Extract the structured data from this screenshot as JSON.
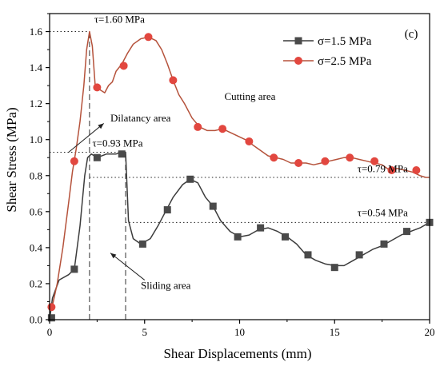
{
  "chart_data": {
    "type": "line",
    "panel_label": "(c)",
    "xlabel": "Shear Displacements (mm)",
    "ylabel": "Shear Stress (MPa)",
    "xlim": [
      0,
      20
    ],
    "ylim": [
      0,
      1.7
    ],
    "x_ticks": [
      "0",
      "5",
      "10",
      "15",
      "20"
    ],
    "y_ticks": [
      "0.0",
      "0.2",
      "0.4",
      "0.6",
      "0.8",
      "1.0",
      "1.2",
      "1.4",
      "1.6"
    ],
    "legend_position": "top-right",
    "series": [
      {
        "name": "σ=1.5 MPa",
        "color": "#3c3c3c",
        "marker": "square",
        "curve": [
          [
            0,
            0
          ],
          [
            0.15,
            0.12
          ],
          [
            0.5,
            0.22
          ],
          [
            1.0,
            0.25
          ],
          [
            1.3,
            0.28
          ],
          [
            1.6,
            0.52
          ],
          [
            1.85,
            0.8
          ],
          [
            2.0,
            0.9
          ],
          [
            2.2,
            0.92
          ],
          [
            2.5,
            0.9
          ],
          [
            3.0,
            0.92
          ],
          [
            3.5,
            0.92
          ],
          [
            3.8,
            0.93
          ],
          [
            4.0,
            0.93
          ],
          [
            4.15,
            0.55
          ],
          [
            4.4,
            0.45
          ],
          [
            4.8,
            0.42
          ],
          [
            5.3,
            0.45
          ],
          [
            5.7,
            0.52
          ],
          [
            6.1,
            0.6
          ],
          [
            6.5,
            0.68
          ],
          [
            7.0,
            0.75
          ],
          [
            7.4,
            0.78
          ],
          [
            7.8,
            0.76
          ],
          [
            8.2,
            0.68
          ],
          [
            8.6,
            0.63
          ],
          [
            9.0,
            0.55
          ],
          [
            9.5,
            0.49
          ],
          [
            10.0,
            0.46
          ],
          [
            10.5,
            0.47
          ],
          [
            11.0,
            0.5
          ],
          [
            11.5,
            0.51
          ],
          [
            12.0,
            0.49
          ],
          [
            12.5,
            0.46
          ],
          [
            13.0,
            0.42
          ],
          [
            13.5,
            0.36
          ],
          [
            14.0,
            0.33
          ],
          [
            14.5,
            0.31
          ],
          [
            15.0,
            0.3
          ],
          [
            15.5,
            0.3
          ],
          [
            16.0,
            0.33
          ],
          [
            16.5,
            0.36
          ],
          [
            17.0,
            0.39
          ],
          [
            17.5,
            0.41
          ],
          [
            18.0,
            0.44
          ],
          [
            18.5,
            0.47
          ],
          [
            19.0,
            0.49
          ],
          [
            19.5,
            0.51
          ],
          [
            20.0,
            0.54
          ]
        ],
        "marker_points": [
          [
            0.1,
            0.01
          ],
          [
            1.3,
            0.28
          ],
          [
            2.5,
            0.9
          ],
          [
            3.8,
            0.92
          ],
          [
            4.9,
            0.42
          ],
          [
            6.2,
            0.61
          ],
          [
            7.4,
            0.78
          ],
          [
            8.6,
            0.63
          ],
          [
            9.9,
            0.46
          ],
          [
            11.1,
            0.51
          ],
          [
            12.4,
            0.46
          ],
          [
            13.6,
            0.36
          ],
          [
            15.0,
            0.29
          ],
          [
            16.3,
            0.36
          ],
          [
            17.6,
            0.42
          ],
          [
            18.8,
            0.49
          ],
          [
            20.0,
            0.54
          ]
        ]
      },
      {
        "name": "σ=2.5 MPa",
        "color": "#b5523b",
        "marker": "circle",
        "marker_color": "#e2473f",
        "curve": [
          [
            0,
            0.05
          ],
          [
            0.15,
            0.08
          ],
          [
            0.4,
            0.2
          ],
          [
            0.7,
            0.4
          ],
          [
            1.0,
            0.65
          ],
          [
            1.2,
            0.82
          ],
          [
            1.4,
            0.95
          ],
          [
            1.6,
            1.1
          ],
          [
            1.8,
            1.3
          ],
          [
            1.95,
            1.5
          ],
          [
            2.1,
            1.6
          ],
          [
            2.25,
            1.52
          ],
          [
            2.4,
            1.3
          ],
          [
            2.6,
            1.28
          ],
          [
            2.9,
            1.26
          ],
          [
            3.1,
            1.3
          ],
          [
            3.3,
            1.32
          ],
          [
            3.5,
            1.38
          ],
          [
            3.8,
            1.42
          ],
          [
            4.1,
            1.48
          ],
          [
            4.4,
            1.53
          ],
          [
            4.8,
            1.56
          ],
          [
            5.2,
            1.57
          ],
          [
            5.6,
            1.55
          ],
          [
            5.9,
            1.5
          ],
          [
            6.2,
            1.42
          ],
          [
            6.5,
            1.33
          ],
          [
            6.8,
            1.25
          ],
          [
            7.1,
            1.2
          ],
          [
            7.5,
            1.12
          ],
          [
            7.9,
            1.07
          ],
          [
            8.3,
            1.05
          ],
          [
            8.7,
            1.05
          ],
          [
            9.1,
            1.06
          ],
          [
            9.5,
            1.04
          ],
          [
            9.9,
            1.02
          ],
          [
            10.3,
            1.0
          ],
          [
            10.7,
            0.97
          ],
          [
            11.1,
            0.94
          ],
          [
            11.5,
            0.91
          ],
          [
            11.9,
            0.9
          ],
          [
            12.3,
            0.89
          ],
          [
            12.7,
            0.87
          ],
          [
            13.1,
            0.87
          ],
          [
            13.5,
            0.87
          ],
          [
            13.9,
            0.86
          ],
          [
            14.3,
            0.87
          ],
          [
            14.7,
            0.88
          ],
          [
            15.1,
            0.89
          ],
          [
            15.5,
            0.9
          ],
          [
            15.9,
            0.9
          ],
          [
            16.3,
            0.89
          ],
          [
            16.7,
            0.88
          ],
          [
            17.1,
            0.87
          ],
          [
            17.5,
            0.86
          ],
          [
            17.9,
            0.83
          ],
          [
            18.3,
            0.84
          ],
          [
            18.7,
            0.83
          ],
          [
            19.1,
            0.82
          ],
          [
            19.5,
            0.8
          ],
          [
            19.8,
            0.79
          ],
          [
            20.0,
            0.79
          ]
        ],
        "marker_points": [
          [
            0.1,
            0.07
          ],
          [
            1.3,
            0.88
          ],
          [
            2.5,
            1.29
          ],
          [
            3.9,
            1.41
          ],
          [
            5.2,
            1.57
          ],
          [
            6.5,
            1.33
          ],
          [
            7.8,
            1.07
          ],
          [
            9.1,
            1.06
          ],
          [
            10.5,
            0.99
          ],
          [
            11.8,
            0.9
          ],
          [
            13.1,
            0.87
          ],
          [
            14.5,
            0.88
          ],
          [
            15.8,
            0.9
          ],
          [
            17.1,
            0.88
          ],
          [
            18.0,
            0.83
          ],
          [
            19.3,
            0.83
          ]
        ]
      }
    ],
    "h_refs": [
      {
        "y": 1.6,
        "x_from": 0,
        "x_to": 2.1
      },
      {
        "y": 0.93,
        "x_from": 0,
        "x_to": 4.0
      },
      {
        "y": 0.79,
        "x_from": 2.1,
        "x_to": 20
      },
      {
        "y": 0.54,
        "x_from": 4.0,
        "x_to": 20
      }
    ],
    "v_refs": [
      {
        "x": 2.1,
        "y_from": 0,
        "y_to": 1.6
      },
      {
        "x": 4.0,
        "y_from": 0,
        "y_to": 0.93
      }
    ],
    "annotations": [
      {
        "text": "τ=1.60 MPa",
        "x": 2.35,
        "y": 1.65
      },
      {
        "text": "τ=0.93 MPa",
        "x": 2.25,
        "y": 0.96
      },
      {
        "text": "τ=0.79 MPa",
        "x": 16.2,
        "y": 0.82
      },
      {
        "text": "τ=0.54 MPa",
        "x": 16.2,
        "y": 0.575
      },
      {
        "text": "Cutting area",
        "x": 9.2,
        "y": 1.22
      },
      {
        "text": "Dilatancy area",
        "x": 3.2,
        "y": 1.1
      },
      {
        "text": "Sliding area",
        "x": 4.8,
        "y": 0.17
      }
    ],
    "arrows": [
      {
        "from": [
          1.0,
          0.93
        ],
        "to": [
          2.85,
          1.09
        ]
      },
      {
        "from": [
          5.0,
          0.22
        ],
        "to": [
          3.2,
          0.37
        ]
      }
    ]
  }
}
